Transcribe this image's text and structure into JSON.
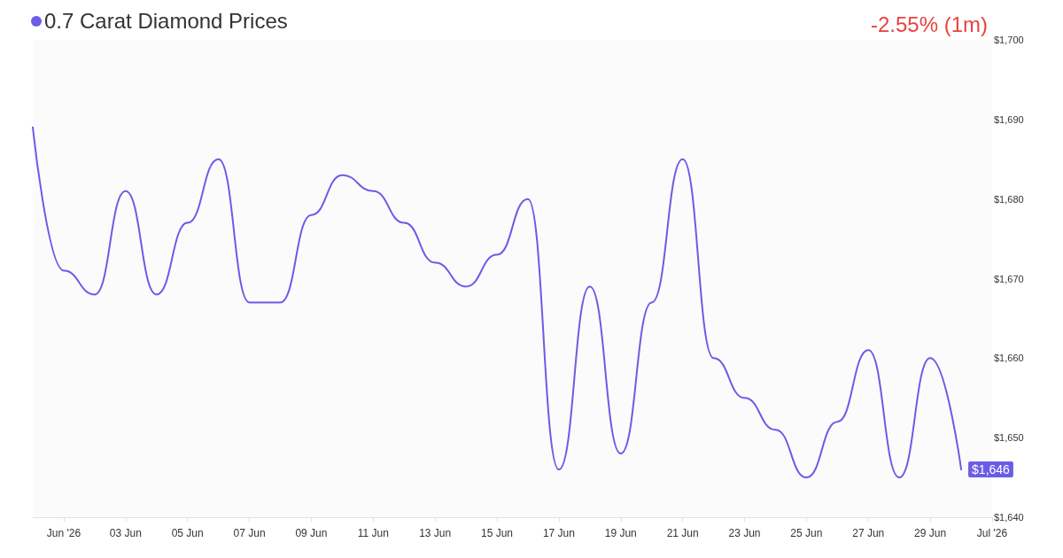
{
  "chart_data": {
    "type": "line",
    "title": "0.7 Carat Diamond Prices",
    "annotations": [
      "-2.55% (1m)"
    ],
    "x": [
      "2026-05-31",
      "2026-06-01",
      "2026-06-02",
      "2026-06-03",
      "2026-06-04",
      "2026-06-05",
      "2026-06-06",
      "2026-06-07",
      "2026-06-08",
      "2026-06-09",
      "2026-06-10",
      "2026-06-11",
      "2026-06-12",
      "2026-06-13",
      "2026-06-14",
      "2026-06-15",
      "2026-06-16",
      "2026-06-17",
      "2026-06-18",
      "2026-06-19",
      "2026-06-20",
      "2026-06-21",
      "2026-06-22",
      "2026-06-23",
      "2026-06-24",
      "2026-06-25",
      "2026-06-26",
      "2026-06-27",
      "2026-06-28",
      "2026-06-29",
      "2026-06-30"
    ],
    "series": [
      {
        "color": "#6b5ce7",
        "values": [
          1689,
          1671,
          1668,
          1681,
          1668,
          1677,
          1685,
          1667,
          1667,
          1678,
          1683,
          1681,
          1677,
          1672,
          1669,
          1673,
          1680,
          1646,
          1669,
          1648,
          1667,
          1685,
          1660,
          1655,
          1651,
          1645,
          1652,
          1661,
          1645,
          1660,
          1646
        ],
        "value_labels": [
          null,
          null,
          null,
          null,
          null,
          null,
          null,
          null,
          null,
          null,
          null,
          null,
          null,
          null,
          null,
          null,
          null,
          null,
          null,
          null,
          null,
          null,
          null,
          null,
          null,
          null,
          null,
          null,
          null,
          null,
          "$1,646"
        ]
      }
    ],
    "xlim": [
      "2026-05-31",
      "2026-07-01"
    ],
    "xticks": [
      {
        "value": "2026-06-01",
        "label": "Jun '26"
      },
      {
        "value": "2026-06-03",
        "label": "03 Jun"
      },
      {
        "value": "2026-06-05",
        "label": "05 Jun"
      },
      {
        "value": "2026-06-07",
        "label": "07 Jun"
      },
      {
        "value": "2026-06-09",
        "label": "09 Jun"
      },
      {
        "value": "2026-06-11",
        "label": "11 Jun"
      },
      {
        "value": "2026-06-13",
        "label": "13 Jun"
      },
      {
        "value": "2026-06-15",
        "label": "15 Jun"
      },
      {
        "value": "2026-06-17",
        "label": "17 Jun"
      },
      {
        "value": "2026-06-19",
        "label": "19 Jun"
      },
      {
        "value": "2026-06-21",
        "label": "21 Jun"
      },
      {
        "value": "2026-06-23",
        "label": "23 Jun"
      },
      {
        "value": "2026-06-25",
        "label": "25 Jun"
      },
      {
        "value": "2026-06-27",
        "label": "27 Jun"
      },
      {
        "value": "2026-06-29",
        "label": "29 Jun"
      },
      {
        "value": "2026-07-01",
        "label": "Jul '26"
      }
    ],
    "ylim": [
      1640,
      1700
    ],
    "yticks": [
      {
        "value": 1640,
        "label": "$1,640"
      },
      {
        "value": 1650,
        "label": "$1,650"
      },
      {
        "value": 1660,
        "label": "$1,660"
      },
      {
        "value": 1670,
        "label": "$1,670"
      },
      {
        "value": 1680,
        "label": "$1,680"
      },
      {
        "value": 1690,
        "label": "$1,690"
      },
      {
        "value": 1700,
        "label": "$1,700"
      }
    ],
    "grid": false,
    "marker": "none",
    "line_style": "solid"
  }
}
